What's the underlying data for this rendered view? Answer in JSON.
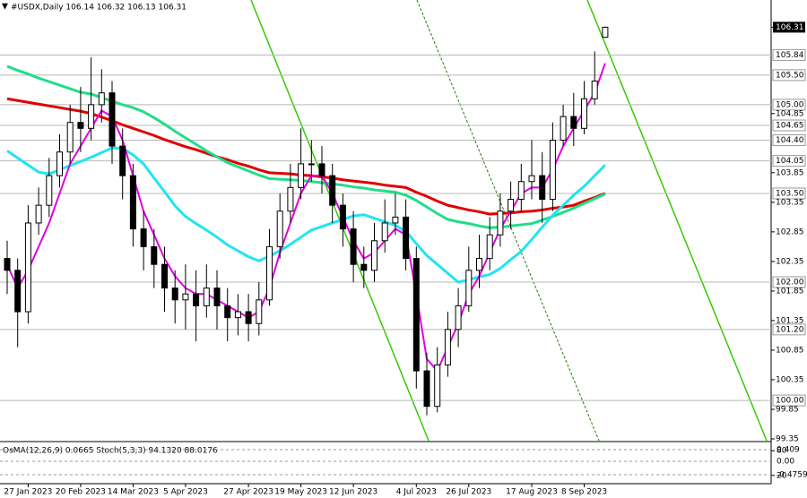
{
  "chart_data": {
    "type": "candlestick",
    "title": "#USDX,Daily  106.14 106.32 106.13 106.31",
    "categories": [
      null,
      null,
      "27 Jan 2023",
      null,
      null,
      null,
      null,
      "20 Feb 2023",
      null,
      null,
      null,
      null,
      "14 Mar 2023",
      null,
      null,
      null,
      null,
      "5 Apr 2023",
      null,
      null,
      null,
      null,
      null,
      "27 Apr 2023",
      null,
      null,
      null,
      null,
      "19 May 2023",
      null,
      null,
      null,
      null,
      "12 Jun 2023",
      null,
      null,
      null,
      null,
      null,
      "4 Jul 2023",
      null,
      null,
      null,
      null,
      "26 Jul 2023",
      null,
      null,
      null,
      null,
      null,
      "17 Aug 2023",
      null,
      null,
      null,
      null,
      "8 Sep 2023",
      null,
      null
    ],
    "open": [
      102.4,
      102.2,
      101.5,
      103.0,
      103.3,
      103.8,
      104.2,
      104.7,
      104.6,
      105.0,
      105.2,
      104.3,
      103.8,
      102.9,
      102.6,
      102.3,
      101.9,
      101.7,
      101.8,
      101.6,
      101.9,
      101.6,
      101.4,
      101.5,
      101.3,
      101.7,
      102.6,
      103.2,
      103.6,
      104.0,
      104.0,
      103.8,
      103.3,
      102.9,
      102.3,
      102.2,
      102.7,
      103.0,
      103.1,
      102.4,
      100.5,
      99.9,
      100.6,
      101.2,
      101.6,
      102.2,
      102.4,
      102.8,
      103.2,
      103.4,
      103.7,
      103.8,
      103.4,
      104.4,
      104.8,
      104.6,
      105.1,
      106.14
    ],
    "high": [
      102.7,
      102.4,
      103.3,
      103.6,
      104.1,
      104.5,
      105.0,
      105.3,
      105.8,
      105.6,
      105.4,
      104.6,
      104.0,
      103.2,
      102.9,
      102.6,
      102.2,
      102.3,
      102.2,
      102.3,
      102.2,
      101.9,
      101.8,
      101.8,
      102.0,
      102.9,
      103.5,
      104.0,
      104.6,
      104.4,
      104.3,
      104.0,
      103.5,
      103.2,
      102.6,
      103.0,
      103.4,
      103.5,
      103.4,
      102.6,
      100.8,
      100.9,
      101.5,
      101.9,
      102.6,
      102.8,
      103.1,
      103.5,
      103.7,
      104.0,
      104.4,
      104.2,
      104.7,
      105.0,
      105.2,
      105.4,
      105.9,
      106.32
    ],
    "low": [
      101.8,
      100.9,
      101.3,
      102.8,
      103.1,
      103.6,
      104.0,
      104.2,
      104.4,
      104.7,
      104.0,
      103.4,
      102.6,
      102.2,
      101.9,
      101.5,
      101.3,
      101.2,
      101.0,
      101.4,
      101.2,
      101.0,
      101.1,
      101.0,
      101.1,
      101.6,
      102.4,
      103.0,
      103.4,
      103.7,
      103.5,
      103.0,
      102.6,
      102.0,
      101.9,
      102.0,
      102.5,
      102.8,
      102.2,
      100.2,
      99.75,
      99.8,
      100.4,
      100.9,
      101.5,
      101.9,
      102.2,
      102.6,
      102.9,
      103.2,
      103.4,
      103.0,
      103.2,
      104.3,
      104.3,
      104.5,
      105.0,
      106.13
    ],
    "close": [
      102.2,
      101.5,
      103.0,
      103.3,
      103.8,
      104.2,
      104.7,
      104.6,
      105.0,
      105.2,
      104.3,
      103.8,
      102.9,
      102.6,
      102.3,
      101.9,
      101.7,
      101.8,
      101.6,
      101.9,
      101.6,
      101.4,
      101.5,
      101.3,
      101.7,
      102.6,
      103.2,
      103.6,
      104.0,
      104.0,
      103.8,
      103.3,
      102.9,
      102.3,
      102.2,
      102.7,
      103.0,
      103.1,
      102.4,
      100.5,
      99.9,
      100.6,
      101.2,
      101.6,
      102.2,
      102.4,
      102.8,
      103.2,
      103.4,
      103.7,
      103.8,
      103.4,
      104.4,
      104.8,
      104.6,
      105.1,
      105.4,
      106.31
    ],
    "series": [
      {
        "color": "#e00000",
        "width": 3,
        "values": [
          105.1,
          105.07,
          105.04,
          105.01,
          104.98,
          104.95,
          104.92,
          104.89,
          104.85,
          104.79,
          104.73,
          104.66,
          104.6,
          104.54,
          104.48,
          104.41,
          104.35,
          104.29,
          104.24,
          104.18,
          104.12,
          104.07,
          104.01,
          103.96,
          103.9,
          103.85,
          103.84,
          103.83,
          103.81,
          103.8,
          103.78,
          103.76,
          103.73,
          103.71,
          103.69,
          103.67,
          103.64,
          103.62,
          103.6,
          103.52,
          103.45,
          103.37,
          103.3,
          103.26,
          103.22,
          103.19,
          103.15,
          103.16,
          103.17,
          103.19,
          103.2,
          103.22,
          103.25,
          103.27,
          103.3,
          103.37,
          103.43,
          103.5
        ]
      },
      {
        "color": "#22dd88",
        "width": 3,
        "values": [
          105.65,
          105.58,
          105.52,
          105.45,
          105.39,
          105.33,
          105.27,
          105.21,
          105.18,
          105.12,
          105.06,
          105.0,
          104.95,
          104.88,
          104.78,
          104.67,
          104.55,
          104.44,
          104.33,
          104.22,
          104.12,
          104.02,
          103.95,
          103.88,
          103.81,
          103.75,
          103.74,
          103.73,
          103.72,
          103.7,
          103.68,
          103.66,
          103.64,
          103.61,
          103.59,
          103.56,
          103.54,
          103.52,
          103.47,
          103.38,
          103.27,
          103.16,
          103.06,
          103.02,
          102.99,
          102.95,
          102.92,
          102.93,
          102.95,
          102.97,
          102.99,
          103.05,
          103.11,
          103.18,
          103.25,
          103.33,
          103.41,
          103.49
        ]
      },
      {
        "color": "#22e4f0",
        "width": 3,
        "values": [
          104.22,
          104.1,
          103.98,
          103.86,
          103.83,
          103.9,
          103.97,
          104.04,
          104.11,
          104.19,
          104.27,
          104.26,
          104.15,
          104.0,
          103.76,
          103.53,
          103.29,
          103.11,
          102.99,
          102.88,
          102.76,
          102.63,
          102.53,
          102.43,
          102.36,
          102.44,
          102.53,
          102.64,
          102.76,
          102.88,
          102.94,
          103.0,
          103.06,
          103.12,
          103.14,
          103.08,
          103.02,
          102.96,
          102.86,
          102.65,
          102.45,
          102.3,
          102.15,
          102.0,
          102.04,
          102.09,
          102.13,
          102.23,
          102.38,
          102.52,
          102.72,
          102.93,
          103.13,
          103.3,
          103.47,
          103.62,
          103.8,
          103.98
        ]
      },
      {
        "color": "#e000e0",
        "width": 2,
        "values": [
          102.3,
          101.9,
          102.2,
          102.6,
          103.0,
          103.5,
          104.0,
          104.3,
          104.6,
          104.9,
          104.8,
          104.4,
          103.8,
          103.2,
          102.8,
          102.4,
          102.1,
          101.9,
          101.8,
          101.8,
          101.7,
          101.6,
          101.5,
          101.4,
          101.5,
          101.9,
          102.5,
          103.0,
          103.5,
          103.8,
          103.8,
          103.5,
          103.1,
          102.7,
          102.4,
          102.5,
          102.7,
          102.9,
          102.8,
          101.8,
          100.7,
          100.5,
          100.9,
          101.3,
          101.8,
          102.1,
          102.5,
          102.9,
          103.2,
          103.5,
          103.6,
          103.6,
          103.9,
          104.3,
          104.6,
          104.9,
          105.2,
          105.7
        ]
      }
    ],
    "ylim": [
      99.35,
      106.77
    ],
    "yticks": [
      {
        "value": 106.31,
        "label": "106.31",
        "style": "current"
      },
      {
        "value": 105.84,
        "label": "105.84",
        "style": "level"
      },
      {
        "value": 105.5,
        "label": "105.50",
        "style": "level"
      },
      {
        "value": 105.0,
        "label": "105.00",
        "style": "level"
      },
      {
        "value": 104.85,
        "label": "104.85"
      },
      {
        "value": 104.65,
        "label": "104.65",
        "style": "level"
      },
      {
        "value": 104.4,
        "label": "104.40",
        "style": "level"
      },
      {
        "value": 104.05,
        "label": "104.05",
        "style": "level"
      },
      {
        "value": 103.85,
        "label": "103.85"
      },
      {
        "value": 103.5,
        "label": "103.50",
        "style": "level"
      },
      {
        "value": 103.35,
        "label": "103.35"
      },
      {
        "value": 102.85,
        "label": "102.85"
      },
      {
        "value": 102.35,
        "label": "102.35"
      },
      {
        "value": 102.0,
        "label": "102.00",
        "style": "level"
      },
      {
        "value": 101.85,
        "label": "101.85"
      },
      {
        "value": 101.35,
        "label": "101.35"
      },
      {
        "value": 101.2,
        "label": "101.20",
        "style": "level"
      },
      {
        "value": 100.85,
        "label": "100.85"
      },
      {
        "value": 100.35,
        "label": "100.35"
      },
      {
        "value": 100.0,
        "label": "100.00",
        "style": "level"
      },
      {
        "value": 99.85,
        "label": "99.85"
      },
      {
        "value": 99.35,
        "label": "99.35"
      }
    ],
    "indicator": {
      "title": "OsMA(12,26,9) 0.0665  Stoch(5,3,3) 94.1320 88.0176",
      "ylim": [
        -0.79,
        0.663
      ],
      "yticks": [
        {
          "value": 0.409,
          "label": "0.409"
        },
        {
          "value": 0,
          "label": "0.00"
        },
        {
          "value": -0.4759,
          "label": "-0.4759"
        }
      ],
      "y2lim": [
        0,
        100
      ],
      "y2ticks": [
        80,
        20
      ]
    }
  }
}
